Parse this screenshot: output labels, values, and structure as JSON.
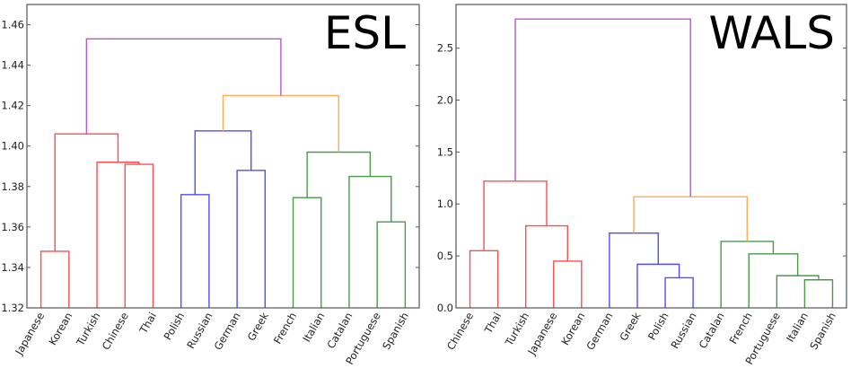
{
  "chart_data": [
    {
      "type": "dendrogram",
      "title": "ESL",
      "ylim": [
        1.32,
        1.47
      ],
      "yticks": [
        "1.32",
        "1.34",
        "1.36",
        "1.38",
        "1.40",
        "1.42",
        "1.44",
        "1.46"
      ],
      "leaves": [
        "Japanese",
        "Korean",
        "Turkish",
        "Chinese",
        "Thai",
        "Polish",
        "Russian",
        "German",
        "Greek",
        "French",
        "Italian",
        "Catalan",
        "Portuguese",
        "Spanish"
      ],
      "merges": [
        {
          "id": "m0",
          "a": "Japanese",
          "b": "Korean",
          "height": 1.348,
          "color": "#ff4d4d"
        },
        {
          "id": "m1",
          "a": "Chinese",
          "b": "Thai",
          "height": 1.391,
          "color": "#ff4d4d"
        },
        {
          "id": "m2",
          "a": "Turkish",
          "b": "m1",
          "height": 1.392,
          "color": "#ff4d4d"
        },
        {
          "id": "m3",
          "a": "m0",
          "b": "m2",
          "height": 1.406,
          "color": "#ff4d4d"
        },
        {
          "id": "m4",
          "a": "Polish",
          "b": "Russian",
          "height": 1.376,
          "color": "#4d4dff"
        },
        {
          "id": "m5",
          "a": "German",
          "b": "Greek",
          "height": 1.388,
          "color": "#4d4dff"
        },
        {
          "id": "m6",
          "a": "m4",
          "b": "m5",
          "height": 1.4075,
          "color": "#4d4dff"
        },
        {
          "id": "m7",
          "a": "French",
          "b": "Italian",
          "height": 1.3745,
          "color": "#4a9a4a"
        },
        {
          "id": "m8",
          "a": "Portuguese",
          "b": "Spanish",
          "height": 1.3625,
          "color": "#4a9a4a"
        },
        {
          "id": "m9",
          "a": "Catalan",
          "b": "m8",
          "height": 1.385,
          "color": "#4a9a4a"
        },
        {
          "id": "m10",
          "a": "m7",
          "b": "m9",
          "height": 1.397,
          "color": "#4a9a4a"
        },
        {
          "id": "m11",
          "a": "m6",
          "b": "m10",
          "height": 1.425,
          "color": "#ffaa55"
        },
        {
          "id": "m12",
          "a": "m3",
          "b": "m11",
          "height": 1.453,
          "color": "#bb55cc"
        }
      ]
    },
    {
      "type": "dendrogram",
      "title": "WALS",
      "ylim": [
        0.0,
        2.92
      ],
      "yticks": [
        "0.0",
        "0.5",
        "1.0",
        "1.5",
        "2.0",
        "2.5"
      ],
      "leaves": [
        "Chinese",
        "Thai",
        "Turkish",
        "Japanese",
        "Korean",
        "German",
        "Greek",
        "Polish",
        "Russian",
        "Catalan",
        "French",
        "Portuguese",
        "Italian",
        "Spanish"
      ],
      "merges": [
        {
          "id": "m0",
          "a": "Chinese",
          "b": "Thai",
          "height": 0.55,
          "color": "#ff4d4d"
        },
        {
          "id": "m1",
          "a": "Japanese",
          "b": "Korean",
          "height": 0.45,
          "color": "#ff4d4d"
        },
        {
          "id": "m2",
          "a": "Turkish",
          "b": "m1",
          "height": 0.79,
          "color": "#ff4d4d"
        },
        {
          "id": "m3",
          "a": "m0",
          "b": "m2",
          "height": 1.22,
          "color": "#ff4d4d"
        },
        {
          "id": "m4",
          "a": "Polish",
          "b": "Russian",
          "height": 0.29,
          "color": "#4d4dff"
        },
        {
          "id": "m5",
          "a": "Greek",
          "b": "m4",
          "height": 0.42,
          "color": "#4d4dff"
        },
        {
          "id": "m6",
          "a": "German",
          "b": "m5",
          "height": 0.72,
          "color": "#4d4dff"
        },
        {
          "id": "m7",
          "a": "Italian",
          "b": "Spanish",
          "height": 0.27,
          "color": "#4a9a4a"
        },
        {
          "id": "m8",
          "a": "Portuguese",
          "b": "m7",
          "height": 0.31,
          "color": "#4a9a4a"
        },
        {
          "id": "m9",
          "a": "French",
          "b": "m8",
          "height": 0.52,
          "color": "#4a9a4a"
        },
        {
          "id": "m10",
          "a": "Catalan",
          "b": "m9",
          "height": 0.64,
          "color": "#4a9a4a"
        },
        {
          "id": "m11",
          "a": "m6",
          "b": "m10",
          "height": 1.07,
          "color": "#ffaa55"
        },
        {
          "id": "m12",
          "a": "m3",
          "b": "m11",
          "height": 2.78,
          "color": "#bb55cc"
        }
      ]
    }
  ]
}
